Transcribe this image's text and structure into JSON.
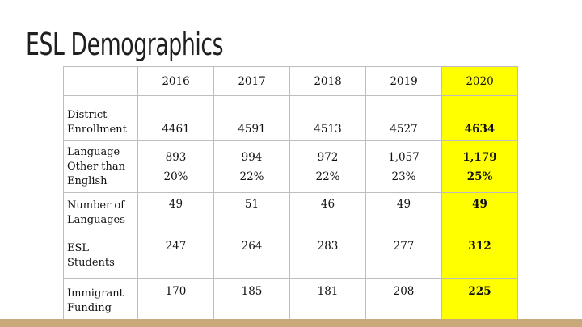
{
  "slide": {
    "title": "ESL Demographics"
  },
  "table": {
    "years": [
      "2016",
      "2017",
      "2018",
      "2019",
      "2020"
    ],
    "rows": [
      {
        "label": "District Enrollment",
        "values": [
          "4461",
          "4591",
          "4513",
          "4527",
          "4634"
        ]
      },
      {
        "label": "Language Other than English",
        "values": [
          "893",
          "994",
          "972",
          "1,057",
          "1,179"
        ],
        "percents": [
          "20%",
          "22%",
          "22%",
          "23%",
          "25%"
        ]
      },
      {
        "label": "Number of Languages",
        "values": [
          "49",
          "51",
          "46",
          "49",
          "49"
        ]
      },
      {
        "label": "ESL Students",
        "values": [
          "247",
          "264",
          "283",
          "277",
          "312"
        ]
      },
      {
        "label": "Immigrant Funding",
        "values": [
          "170",
          "185",
          "181",
          "208",
          "225"
        ]
      }
    ]
  },
  "colors": {
    "highlight": "#ffff00",
    "border": "#bdbdbd",
    "bottom_bar": "#c9a97a"
  }
}
